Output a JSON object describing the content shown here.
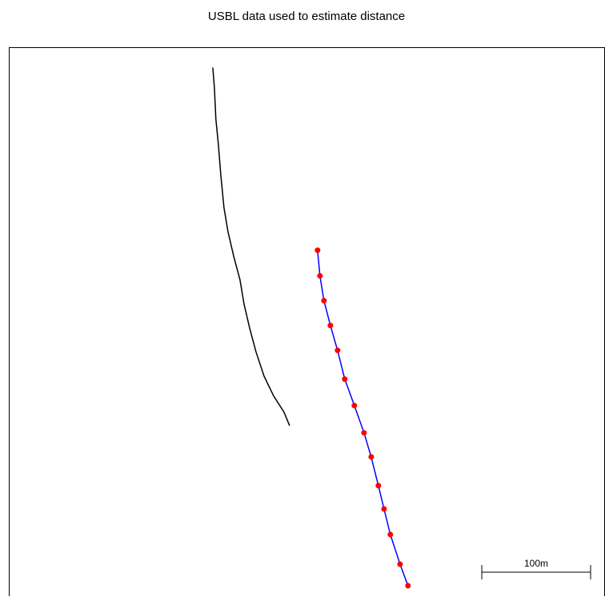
{
  "chart_data": {
    "type": "line",
    "title": "USBL data used to estimate distance",
    "xlim": [
      0,
      548
    ],
    "ylim": [
      0,
      504
    ],
    "series": [
      {
        "color": "#000000",
        "markers": false,
        "x": [
          187.5,
          189,
          190.4,
          192.6,
          194.9,
          197.8,
          201.5,
          206.6,
          212.5,
          216.2,
          221.3,
          227.2,
          234.6,
          243.4,
          252.9,
          258.1
        ],
        "y": [
          485.3,
          466.9,
          437.5,
          415.4,
          386,
          356.6,
          334.6,
          312.5,
          290.4,
          268.4,
          246.3,
          224.3,
          202.2,
          183.8,
          169.1,
          156.6
        ]
      },
      {
        "color": "#0000ff",
        "markers": true,
        "marker_color": "#ff0000",
        "x": [
          283.8,
          286,
          289.7,
          295.6,
          302.2,
          308.8,
          317.6,
          326.5,
          333.1,
          339.7,
          344.9,
          350.7,
          359.6,
          366.9
        ],
        "y": [
          317.6,
          294.1,
          271.3,
          248.5,
          225.7,
          199.3,
          175,
          150,
          127.9,
          101.5,
          80.1,
          56.6,
          29.4,
          9.6
        ]
      }
    ],
    "scale_bar": {
      "length": 100,
      "label": "100m"
    }
  }
}
